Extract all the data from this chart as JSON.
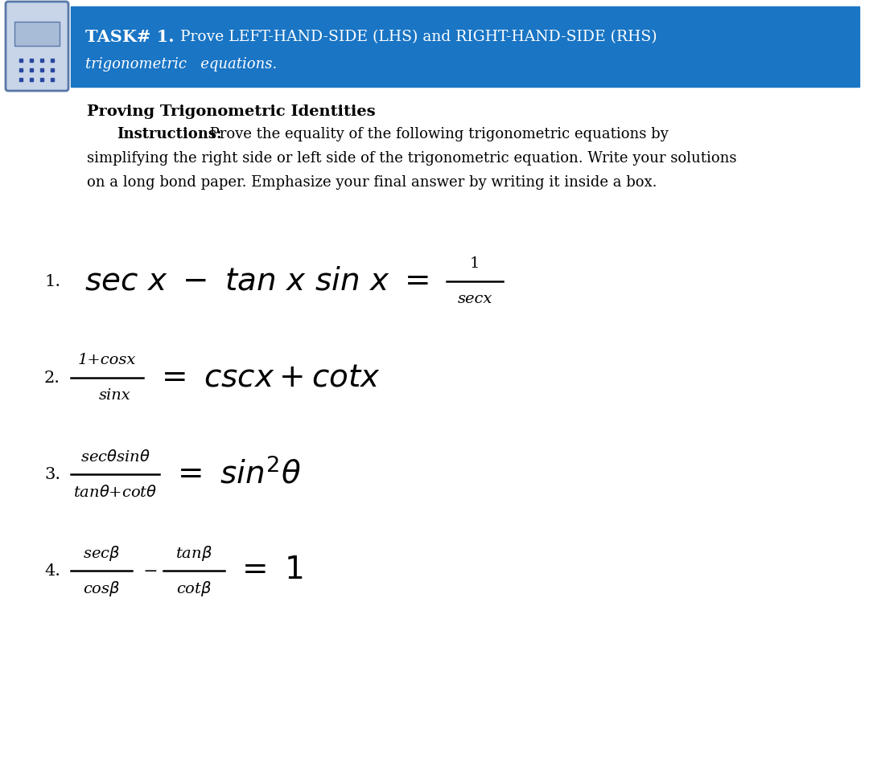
{
  "bg_color": "#ffffff",
  "header_bg": "#1a75c4",
  "header_text_color": "#ffffff",
  "text_color": "#000000",
  "header_bold": "TASK# 1.",
  "header_rest_line1": " Prove LEFT-HAND-SIDE (LHS) and RIGHT-HAND-SIDE (RHS)",
  "header_line2": "trigonometric   equations.",
  "title_text": "Proving Trigonometric Identities",
  "instr_bold": "Instructions:",
  "instr_line1": " Prove the equality of the following trigonometric equations by",
  "instr_line2": "simplifying the right side or left side of the trigonometric equation. Write your solutions",
  "instr_line3": "on a long bond paper. Emphasize your final answer by writing it inside a box.",
  "icon_outer": "#c8d4e8",
  "icon_border": "#5878a8",
  "icon_screen": "#a8bcd8",
  "icon_dot": "#2848a0"
}
